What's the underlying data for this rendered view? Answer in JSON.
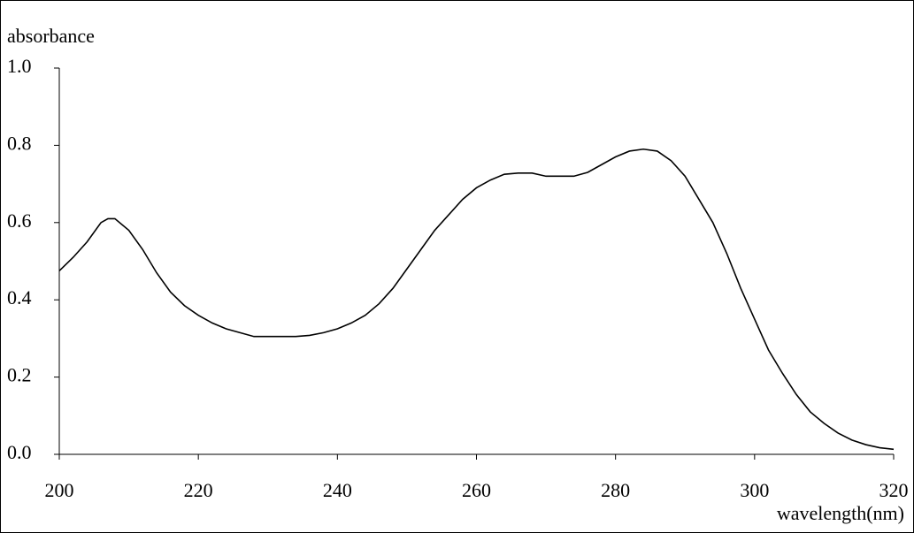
{
  "chart_data": {
    "type": "line",
    "y_label": "absorbance",
    "x_label": "wavelength(nm)",
    "x": [
      200,
      202,
      204,
      206,
      207,
      208,
      210,
      212,
      214,
      216,
      218,
      220,
      222,
      224,
      226,
      228,
      230,
      232,
      234,
      236,
      238,
      240,
      242,
      244,
      246,
      248,
      250,
      252,
      254,
      256,
      258,
      260,
      262,
      264,
      266,
      268,
      270,
      272,
      274,
      276,
      278,
      280,
      282,
      284,
      286,
      288,
      290,
      292,
      294,
      296,
      298,
      300,
      302,
      304,
      306,
      308,
      310,
      312,
      314,
      316,
      318,
      320
    ],
    "series": [
      {
        "color": "#000000",
        "values": [
          0.475,
          0.51,
          0.55,
          0.6,
          0.61,
          0.61,
          0.58,
          0.53,
          0.47,
          0.42,
          0.385,
          0.36,
          0.34,
          0.325,
          0.315,
          0.305,
          0.305,
          0.305,
          0.305,
          0.308,
          0.315,
          0.325,
          0.34,
          0.36,
          0.39,
          0.43,
          0.48,
          0.53,
          0.58,
          0.62,
          0.66,
          0.69,
          0.71,
          0.725,
          0.728,
          0.728,
          0.72,
          0.72,
          0.72,
          0.73,
          0.75,
          0.77,
          0.785,
          0.79,
          0.785,
          0.76,
          0.72,
          0.66,
          0.6,
          0.52,
          0.43,
          0.35,
          0.27,
          0.21,
          0.155,
          0.11,
          0.08,
          0.055,
          0.037,
          0.025,
          0.017,
          0.013
        ]
      }
    ],
    "xlim": [
      200,
      320
    ],
    "xticks": [
      200,
      220,
      240,
      260,
      280,
      300,
      320
    ],
    "ylim": [
      0,
      1
    ],
    "yticks": [
      {
        "value": 0,
        "label": "0.0"
      },
      0.2,
      0.4,
      0.6,
      0.8,
      {
        "value": 1,
        "label": "1.0"
      }
    ]
  }
}
